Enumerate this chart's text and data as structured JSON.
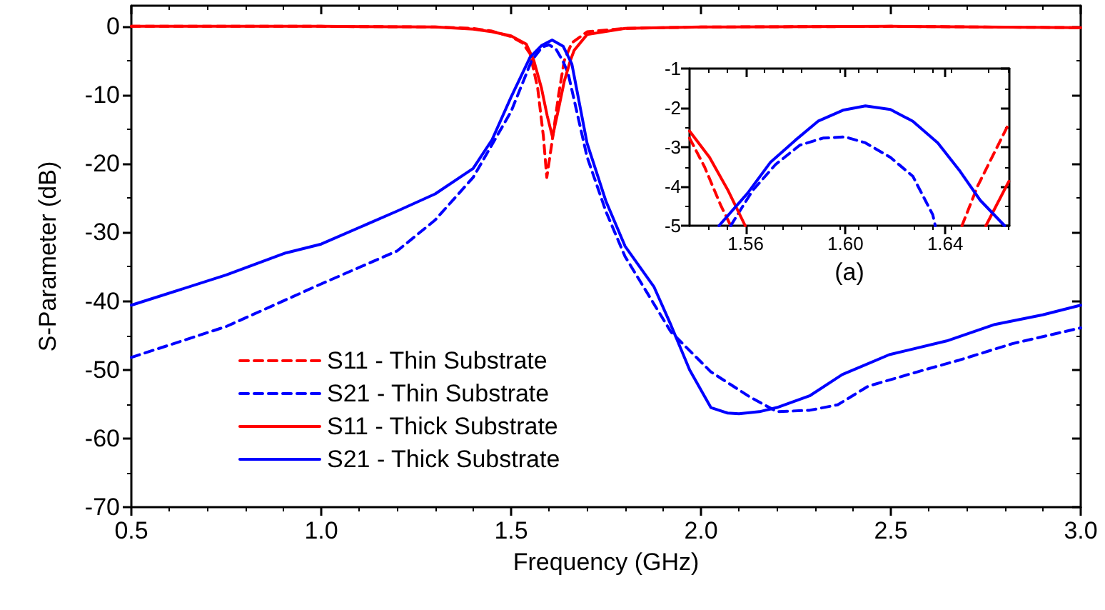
{
  "chart_data": [
    {
      "type": "line",
      "xlabel": "Frequency (GHz)",
      "ylabel": "S-Parameter (dB)",
      "xlim": [
        0.5,
        3.0
      ],
      "xticks": [
        0.5,
        {
          "value": 1,
          "label": "1.0"
        },
        1.5,
        {
          "value": 2,
          "label": "2.0"
        },
        2.5,
        {
          "value": 3,
          "label": "3.0"
        }
      ],
      "ylim": [
        -70,
        3
      ],
      "yticks": [
        -70,
        -60,
        -50,
        -40,
        -30,
        -20,
        -10,
        0
      ],
      "grid": false,
      "legend": "bottom left",
      "marker": "none",
      "series": [
        {
          "name": "S11 - Thin Substrate",
          "color": "#ff0000",
          "line_style": "dashed",
          "x": [
            0.5,
            1.0,
            1.3,
            1.4,
            1.45,
            1.5,
            1.53,
            1.55,
            1.57,
            1.585,
            1.594,
            1.61,
            1.625,
            1.64,
            1.66,
            1.7,
            1.8,
            2.0,
            2.5,
            3.0
          ],
          "values": [
            0,
            0,
            -0.1,
            -0.3,
            -0.7,
            -1.5,
            -2.4,
            -4,
            -9,
            -16,
            -22,
            -16,
            -10,
            -5,
            -2.4,
            -0.8,
            -0.3,
            -0.1,
            0,
            -0.2
          ]
        },
        {
          "name": "S21 - Thin Substrate",
          "color": "#0000ff",
          "line_style": "dashed",
          "x": [
            0.5,
            0.75,
            1.0,
            1.2,
            1.3,
            1.4,
            1.45,
            1.5,
            1.554,
            1.582,
            1.6,
            1.618,
            1.636,
            1.65,
            1.7,
            1.75,
            1.8,
            1.921,
            2.026,
            2.13,
            2.2,
            2.286,
            2.36,
            2.44,
            2.57,
            2.68,
            2.82,
            3.0
          ],
          "values": [
            -48.2,
            -43.7,
            -37.5,
            -32.7,
            -28.2,
            -22,
            -17.2,
            -12.4,
            -5,
            -3,
            -2.7,
            -3.3,
            -5,
            -6.8,
            -19,
            -27,
            -33.5,
            -44.5,
            -50.3,
            -54,
            -56.1,
            -55.9,
            -55.1,
            -52.4,
            -50.3,
            -48.6,
            -46.2,
            -43.9
          ]
        },
        {
          "name": "S11 - Thick Substrate",
          "color": "#ff0000",
          "line_style": "solid",
          "x": [
            0.5,
            1.0,
            1.3,
            1.4,
            1.45,
            1.5,
            1.54,
            1.56,
            1.58,
            1.595,
            1.609,
            1.625,
            1.64,
            1.656,
            1.666,
            1.7,
            1.8,
            2.0,
            2.5,
            3.0
          ],
          "values": [
            0,
            0,
            -0.1,
            -0.4,
            -0.8,
            -1.4,
            -2.6,
            -5,
            -9,
            -13,
            -16.1,
            -12,
            -8,
            -5,
            -3.5,
            -1.2,
            -0.3,
            -0.1,
            0,
            -0.2
          ]
        },
        {
          "name": "S21 - Thick Substrate",
          "color": "#0000ff",
          "line_style": "solid",
          "x": [
            0.5,
            0.75,
            0.906,
            1.0,
            1.2,
            1.3,
            1.4,
            1.45,
            1.5,
            1.55,
            1.58,
            1.608,
            1.637,
            1.66,
            1.7,
            1.75,
            1.8,
            1.876,
            1.921,
            1.97,
            2.026,
            2.07,
            2.1,
            2.154,
            2.2,
            2.286,
            2.372,
            2.496,
            2.647,
            2.774,
            2.9,
            3.0
          ],
          "values": [
            -40.6,
            -36.2,
            -33,
            -31.7,
            -26.9,
            -24.4,
            -20.7,
            -16.5,
            -10.3,
            -4.5,
            -2.8,
            -2,
            -2.9,
            -5.5,
            -17,
            -25.5,
            -32,
            -37.9,
            -43.5,
            -50,
            -55.5,
            -56.3,
            -56.4,
            -56.1,
            -55.5,
            -53.8,
            -50.7,
            -47.8,
            -45.8,
            -43.4,
            -42,
            -40.6
          ]
        }
      ]
    },
    {
      "type": "line",
      "xlabel": "(a)",
      "xlim": [
        1.5375,
        1.6657
      ],
      "xticks": [
        1.56,
        {
          "value": 1.6,
          "label": "1.60"
        },
        1.64
      ],
      "ylim": [
        -5,
        -1
      ],
      "yticks": [
        -5,
        -4,
        -3,
        -2,
        -1
      ],
      "grid": false,
      "marker": "none",
      "series": [
        {
          "color": "#ff0000",
          "line_style": "dashed",
          "x": [
            1.5375,
            1.5435,
            1.55,
            1.554
          ],
          "values": [
            -2.77,
            -3.5,
            -4.48,
            -5
          ]
        },
        {
          "color": "#ff0000",
          "line_style": "dashed",
          "x": [
            1.6467,
            1.653,
            1.6655
          ],
          "values": [
            -5,
            -3.99,
            -2.4
          ]
        },
        {
          "color": "#0000ff",
          "line_style": "dashed",
          "x": [
            1.554,
            1.5627,
            1.572,
            1.5817,
            1.591,
            1.5998,
            1.608,
            1.618,
            1.627,
            1.635,
            1.636
          ],
          "values": [
            -5,
            -4.11,
            -3.44,
            -2.95,
            -2.77,
            -2.74,
            -2.89,
            -3.26,
            -3.74,
            -4.72,
            -5
          ]
        },
        {
          "color": "#ff0000",
          "line_style": "solid",
          "x": [
            1.5375,
            1.5455,
            1.553,
            1.5598
          ],
          "values": [
            -2.59,
            -3.26,
            -4.11,
            -5
          ]
        },
        {
          "color": "#ff0000",
          "line_style": "solid",
          "x": [
            1.6563,
            1.6655
          ],
          "values": [
            -5,
            -3.87
          ]
        },
        {
          "color": "#0000ff",
          "line_style": "solid",
          "x": [
            1.5493,
            1.5608,
            1.57,
            1.5798,
            1.589,
            1.599,
            1.608,
            1.618,
            1.627,
            1.637,
            1.646,
            1.654,
            1.6638
          ],
          "values": [
            -5,
            -4.17,
            -3.38,
            -2.83,
            -2.34,
            -2.06,
            -1.95,
            -2.04,
            -2.34,
            -2.89,
            -3.62,
            -4.35,
            -5
          ]
        }
      ]
    }
  ]
}
